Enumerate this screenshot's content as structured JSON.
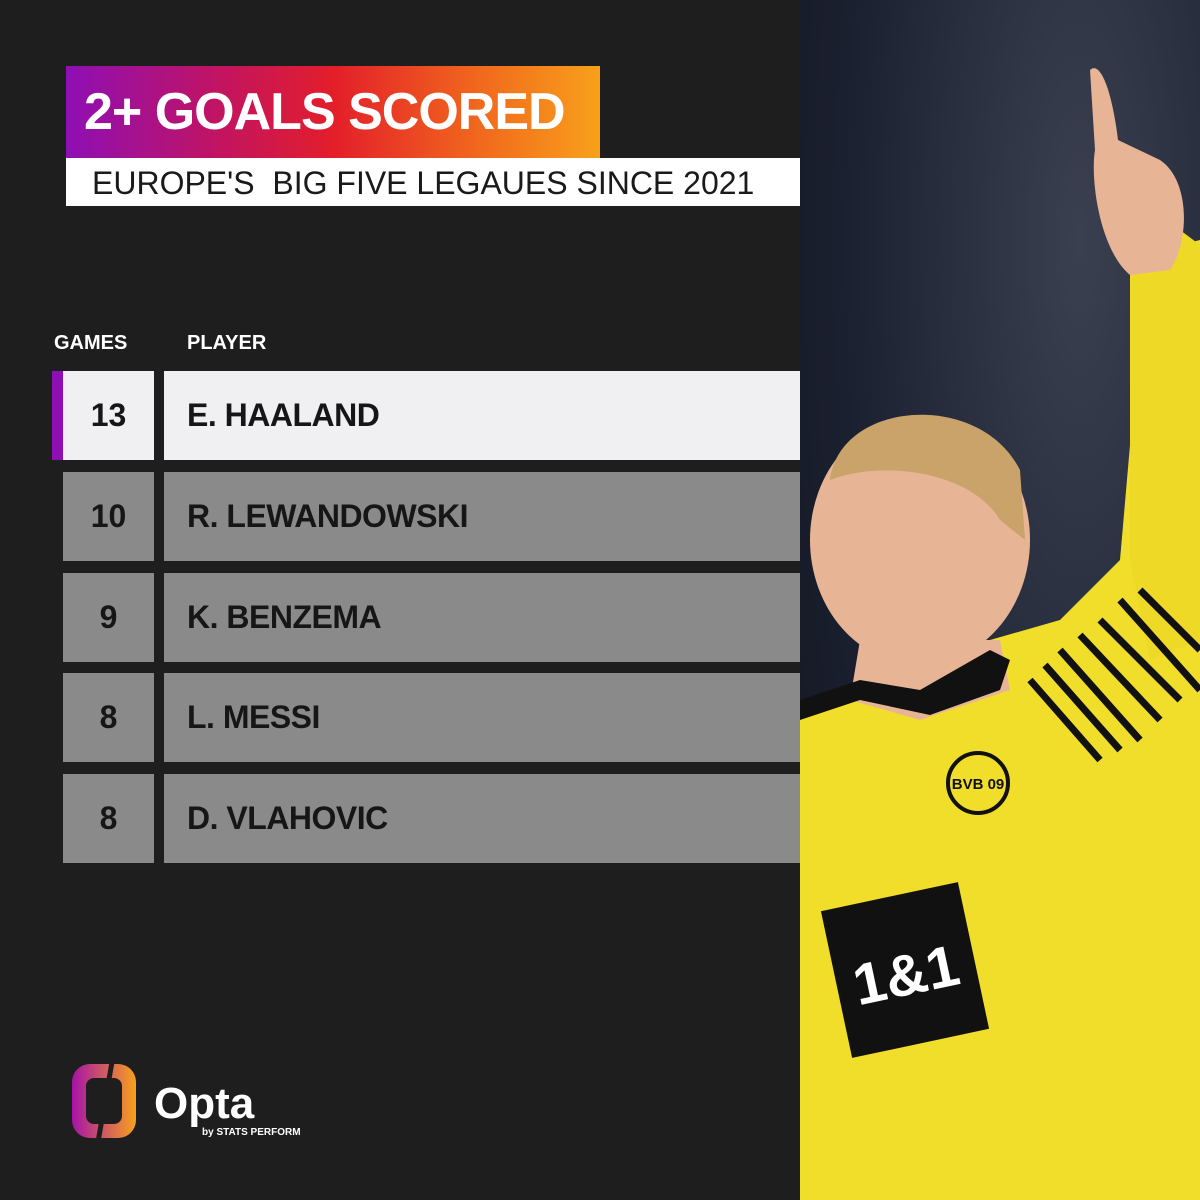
{
  "title": "2+ GOALS SCORED",
  "subtitle": "EUROPE'S  BIG FIVE LEGAUES SINCE 2021",
  "table": {
    "headers": {
      "games": "GAMES",
      "player": "PLAYER"
    },
    "rows": [
      {
        "games": "13",
        "player": "E. HAALAND"
      },
      {
        "games": "10",
        "player": "R. LEWANDOWSKI"
      },
      {
        "games": "9",
        "player": "K. BENZEMA"
      },
      {
        "games": "8",
        "player": "L. MESSI"
      },
      {
        "games": "8",
        "player": "D. VLAHOVIC"
      }
    ]
  },
  "photo": {
    "shirt_sponsor": "1&1",
    "badge": "BVB 09"
  },
  "logo": {
    "name": "Opta",
    "tagline": "by STATS PERFORM"
  },
  "colors": {
    "background": "#1f1e1f",
    "highlight_accent": "#8e0fb4",
    "row": "#8a8a8a",
    "shirt": "#f3e12a"
  }
}
